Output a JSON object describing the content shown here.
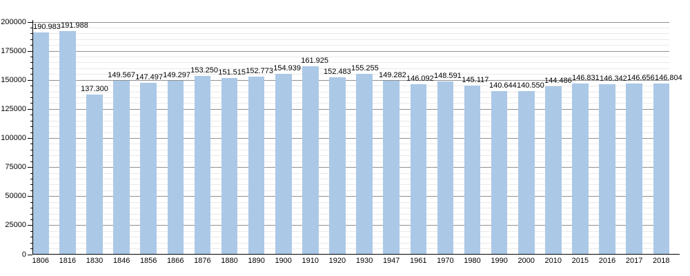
{
  "chart_data": {
    "type": "bar",
    "title": "",
    "categories": [
      "1806",
      "1816",
      "1830",
      "1846",
      "1856",
      "1866",
      "1876",
      "1880",
      "1890",
      "1900",
      "1910",
      "1920",
      "1930",
      "1947",
      "1961",
      "1970",
      "1980",
      "1990",
      "2000",
      "2010",
      "2015",
      "2016",
      "2017",
      "2018"
    ],
    "values": [
      190983,
      191988,
      137300,
      149567,
      147497,
      149297,
      153250,
      151515,
      152773,
      154939,
      161925,
      152483,
      155255,
      149282,
      146092,
      148591,
      145117,
      140644,
      140550,
      144486,
      146831,
      146342,
      146656,
      146804
    ],
    "value_labels": [
      "190.983",
      "191.988",
      "137.300",
      "149.567",
      "147.497",
      "149.297",
      "153.250",
      "151.515",
      "152.773",
      "154.939",
      "161.925",
      "152.483",
      "155.255",
      "149.282",
      "146.092",
      "148.591",
      "145.117",
      "140.644",
      "140.550",
      "144.486",
      "146.831",
      "146.342",
      "146.656",
      "146.804"
    ],
    "xlabel": "",
    "ylabel": "",
    "y_axis": {
      "min": 0,
      "max": 200000,
      "major_step": 25000,
      "minor_step": 5000,
      "tick_labels": [
        "0",
        "25000",
        "50000",
        "75000",
        "100000",
        "125000",
        "150000",
        "175000",
        "200000"
      ]
    },
    "ylim": [
      0,
      200000
    ],
    "grid": true,
    "legend": "none",
    "colors": {
      "bar_fill": "#abc8e6",
      "gridline_major": "#8f8f8f",
      "gridline_minor": "#e9e9e9",
      "axis": "#000000",
      "text": "#000000",
      "background": "#ffffff"
    }
  }
}
